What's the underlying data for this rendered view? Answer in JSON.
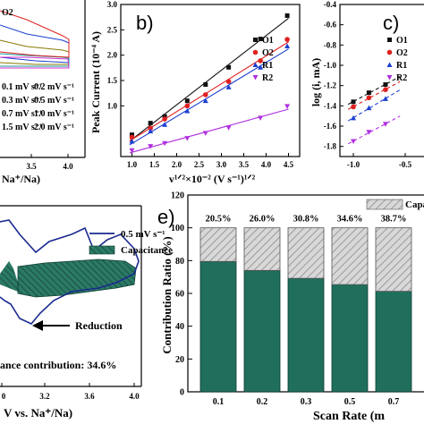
{
  "colors": {
    "O1": "#111111",
    "O2": "#e02020",
    "R1": "#1a3fd0",
    "R2": "#b030e0",
    "capacitive": "#1f6f5c",
    "diffusion": "#d4d4d4"
  },
  "panel_a": {
    "legend_top": "O2",
    "legend": [
      "0.1 mV s⁻¹",
      "0.2 mV s⁻¹",
      "0.3 mV s⁻¹",
      "0.5 mV s⁻¹",
      "0.7 mV s⁻¹",
      "1.0 mV s⁻¹",
      "1.5 mV s⁻¹",
      "2.0 mV s⁻¹"
    ],
    "xticks": [
      "3.5",
      "4.0"
    ],
    "xlabel_fragment": "Na⁺/Na)"
  },
  "panel_b": {
    "letter": "b)",
    "xlabel": "v¹ᐟ²×10⁻² (V s⁻¹)¹ᐟ²",
    "ylabel": "Peak Current (10⁻⁴ A)",
    "xticks": [
      "1.0",
      "1.5",
      "2.0",
      "2.5",
      "3.0",
      "3.5",
      "4.0",
      "4.5"
    ],
    "yticks": [
      "1.0",
      "1.5",
      "2.0",
      "2.5",
      "3.0"
    ],
    "legend": [
      "O1",
      "O2",
      "R1",
      "R2"
    ]
  },
  "panel_c": {
    "letter": "c)",
    "ylabel": "log (i, mA)",
    "yticks": [
      "-0.4",
      "-0.6",
      "-0.8",
      "-1.0",
      "-1.2",
      "-1.4",
      "-1.6",
      "-1.8"
    ],
    "xticks": [
      "-1.0",
      "-0.5"
    ],
    "legend": [
      "O1",
      "O2",
      "R1",
      "R2"
    ]
  },
  "panel_d": {
    "legend": [
      "0.5 mV s⁻¹",
      "Capacitance"
    ],
    "annotation_reduction": "Reduction",
    "annotation_contribution": "ance contribution: 34.6%",
    "xticks": [
      "3.2",
      "3.6",
      "4.0"
    ],
    "xtick_partial": "0",
    "xlabel": "V vs. Na⁺/Na)"
  },
  "panel_e": {
    "letter": "e)",
    "legend_label": "Capacitive",
    "ylabel": "Contribution Ratio (%)",
    "xlabel": "Scan Rate (m",
    "yticks": [
      "0",
      "20",
      "40",
      "60",
      "80",
      "100",
      "120"
    ],
    "percent_labels": [
      "20.5%",
      "26.0%",
      "30.8%",
      "34.6%",
      "38.7%"
    ]
  },
  "chart_data": [
    {
      "type": "line",
      "panel": "b",
      "xlabel": "v¹ᐟ²×10⁻² (V s⁻¹)¹ᐟ²",
      "ylabel": "Peak Current (10⁻⁴ A)",
      "xlim": [
        0.75,
        4.75
      ],
      "ylim": [
        0.0,
        3.0
      ],
      "x": [
        1.0,
        1.414,
        1.732,
        2.236,
        2.646,
        3.162,
        3.873,
        4.472
      ],
      "series": [
        {
          "name": "O1",
          "values": [
            0.43,
            0.66,
            0.79,
            1.1,
            1.42,
            1.76,
            2.32,
            2.78
          ]
        },
        {
          "name": "O2",
          "values": [
            0.38,
            0.56,
            0.74,
            1.0,
            1.22,
            1.48,
            1.89,
            2.31
          ]
        },
        {
          "name": "R1",
          "values": [
            0.3,
            0.5,
            0.63,
            0.9,
            1.1,
            1.37,
            1.76,
            2.18
          ]
        },
        {
          "name": "R2",
          "values": [
            0.12,
            0.2,
            0.26,
            0.36,
            0.46,
            0.57,
            0.76,
            0.99
          ]
        }
      ]
    },
    {
      "type": "line",
      "panel": "c",
      "ylabel": "log (i, mA)",
      "ylim": [
        -1.9,
        -0.4
      ],
      "x": [
        -1.0,
        -0.85,
        -0.69
      ],
      "series": [
        {
          "name": "O1",
          "values": [
            -1.36,
            -1.27,
            -1.19
          ]
        },
        {
          "name": "O2",
          "values": [
            -1.41,
            -1.32,
            -1.24
          ]
        },
        {
          "name": "R1",
          "values": [
            -1.52,
            -1.42,
            -1.33
          ]
        },
        {
          "name": "R2",
          "values": [
            -1.75,
            -1.66,
            -1.58
          ]
        }
      ]
    },
    {
      "type": "bar",
      "panel": "e",
      "ylabel": "Contribution Ratio (%)",
      "xlabel": "Scan Rate (m",
      "categories": [
        "0.1",
        "0.2",
        "0.3",
        "0.5",
        "0.7"
      ],
      "ylim": [
        0,
        120
      ],
      "series": [
        {
          "name": "Capacitive",
          "values": [
            20.5,
            26.0,
            30.8,
            34.6,
            38.7
          ]
        },
        {
          "name": "",
          "values": [
            79.5,
            74.0,
            69.2,
            65.4,
            61.3
          ]
        }
      ]
    }
  ]
}
